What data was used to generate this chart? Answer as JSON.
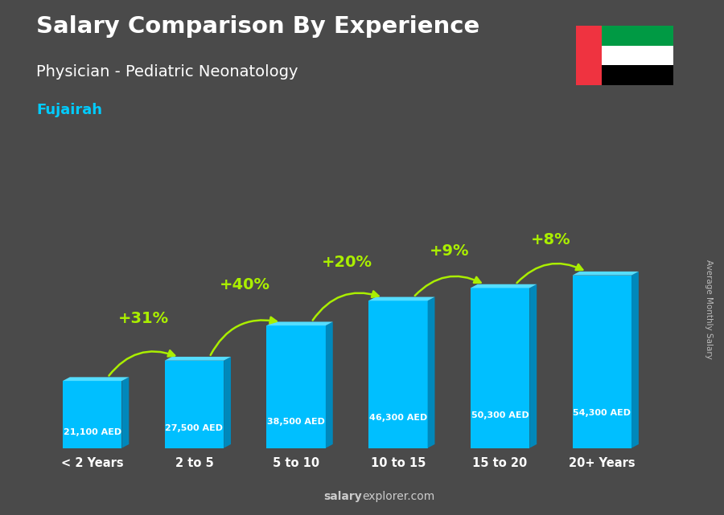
{
  "title_line1": "Salary Comparison By Experience",
  "title_line2": "Physician - Pediatric Neonatology",
  "city": "Fujairah",
  "ylabel": "Average Monthly Salary",
  "watermark_bold": "salary",
  "watermark_normal": "explorer.com",
  "categories": [
    "< 2 Years",
    "2 to 5",
    "5 to 10",
    "10 to 15",
    "15 to 20",
    "20+ Years"
  ],
  "values": [
    21100,
    27500,
    38500,
    46300,
    50300,
    54300
  ],
  "value_labels": [
    "21,100 AED",
    "27,500 AED",
    "38,500 AED",
    "46,300 AED",
    "50,300 AED",
    "54,300 AED"
  ],
  "pct_labels": [
    "+31%",
    "+40%",
    "+20%",
    "+9%",
    "+8%"
  ],
  "bar_color": "#00BFFF",
  "bar_right_color": "#0088BB",
  "bar_top_color": "#55DDFF",
  "background_color": "#4a4a4a",
  "title_color": "#ffffff",
  "city_color": "#00CCFF",
  "value_label_color": "#ffffff",
  "pct_color": "#AAEE00",
  "arrow_color": "#AAEE00",
  "watermark_color": "#cccccc",
  "ylabel_color": "#bbbbbb",
  "fig_width": 9.0,
  "fig_height": 6.41,
  "dpi": 100
}
